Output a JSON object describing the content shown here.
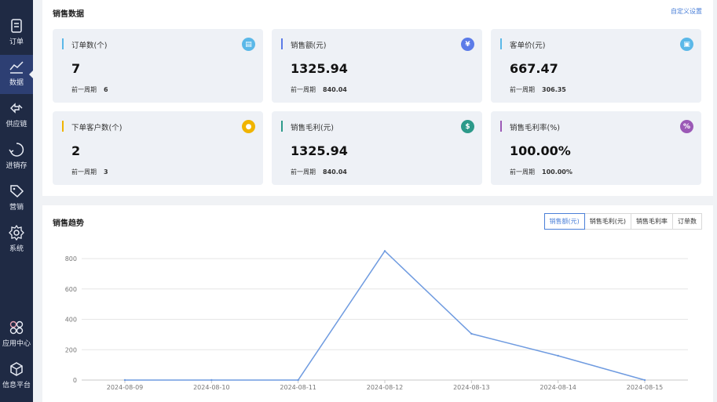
{
  "sidebar": {
    "items": [
      {
        "label": "订单",
        "icon": "order-icon"
      },
      {
        "label": "数据",
        "icon": "chart-icon"
      },
      {
        "label": "供应链",
        "icon": "supply-chain-icon"
      },
      {
        "label": "进销存",
        "icon": "inventory-icon"
      },
      {
        "label": "营销",
        "icon": "tag-icon"
      },
      {
        "label": "系统",
        "icon": "gear-icon"
      },
      {
        "label": "应用中心",
        "icon": "apps-icon"
      },
      {
        "label": "信息平台",
        "icon": "cube-icon"
      }
    ]
  },
  "sales": {
    "title": "销售数据",
    "custom_link": "自定义设置",
    "prev_label": "前一周期",
    "cards": [
      {
        "label": "订单数(个)",
        "value": "7",
        "prev": "6",
        "color": "#5bb8e8",
        "icon": "document-icon"
      },
      {
        "label": "销售额(元)",
        "value": "1325.94",
        "prev": "840.04",
        "color": "#5b7be8",
        "icon": "yen-icon"
      },
      {
        "label": "客单价(元)",
        "value": "667.47",
        "prev": "306.35",
        "color": "#5bb8e8",
        "icon": "receipt-icon"
      },
      {
        "label": "下单客户数(个)",
        "value": "2",
        "prev": "3",
        "color": "#f0b400",
        "icon": "user-icon"
      },
      {
        "label": "销售毛利(元)",
        "value": "1325.94",
        "prev": "840.04",
        "color": "#2d9a8a",
        "icon": "money-bag-icon"
      },
      {
        "label": "销售毛利率(%)",
        "value": "100.00%",
        "prev": "100.00%",
        "color": "#9b59b6",
        "icon": "percent-icon"
      }
    ]
  },
  "trend": {
    "title": "销售趋势",
    "tabs": [
      "销售额(元)",
      "销售毛利(元)",
      "销售毛利率",
      "订单数"
    ],
    "active_tab": 0
  },
  "chart_data": {
    "type": "line",
    "x": [
      "2024-08-09",
      "2024-08-10",
      "2024-08-11",
      "2024-08-12",
      "2024-08-13",
      "2024-08-14",
      "2024-08-15"
    ],
    "series": [
      {
        "values": [
          0,
          0,
          0,
          850,
          305,
          160,
          0
        ]
      }
    ],
    "ylim": [
      0,
      800
    ],
    "yticks": [
      0,
      200,
      400,
      600,
      800
    ],
    "grid": true,
    "line_color": "#6f9be0"
  }
}
